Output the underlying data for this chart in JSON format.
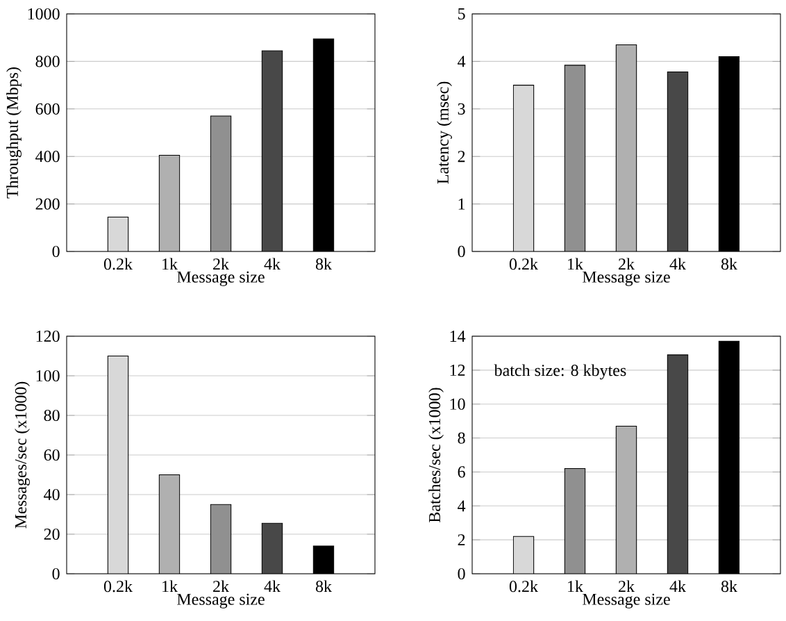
{
  "chart_data": [
    {
      "type": "bar",
      "xlabel": "Message size",
      "ylabel": "Throughput (Mbps)",
      "categories": [
        "0.2k",
        "1k",
        "2k",
        "4k",
        "8k"
      ],
      "values": [
        145,
        405,
        570,
        845,
        895
      ],
      "colors": [
        "#d8d8d8",
        "#b0b0b0",
        "#909090",
        "#484848",
        "#000000"
      ],
      "ylim": [
        0,
        1000
      ],
      "yticks": [
        0,
        200,
        400,
        600,
        800,
        1000
      ],
      "grid": "y"
    },
    {
      "type": "bar",
      "xlabel": "Message size",
      "ylabel": "Latency (msec)",
      "categories": [
        "0.2k",
        "1k",
        "2k",
        "4k",
        "8k"
      ],
      "values": [
        3.5,
        3.92,
        4.35,
        3.78,
        4.1
      ],
      "colors": [
        "#d8d8d8",
        "#909090",
        "#b0b0b0",
        "#484848",
        "#000000"
      ],
      "ylim": [
        0,
        5
      ],
      "yticks": [
        0,
        1,
        2,
        3,
        4,
        5
      ],
      "grid": "y"
    },
    {
      "type": "bar",
      "xlabel": "Message size",
      "ylabel": "Messages/sec (x1000)",
      "categories": [
        "0.2k",
        "1k",
        "2k",
        "4k",
        "8k"
      ],
      "values": [
        110,
        50,
        35,
        25.5,
        14
      ],
      "colors": [
        "#d8d8d8",
        "#b0b0b0",
        "#909090",
        "#484848",
        "#000000"
      ],
      "ylim": [
        0,
        120
      ],
      "yticks": [
        0,
        20,
        40,
        60,
        80,
        100,
        120
      ],
      "grid": "y"
    },
    {
      "type": "bar",
      "xlabel": "Message size",
      "ylabel": "Batches/sec (x1000)",
      "categories": [
        "0.2k",
        "1k",
        "2k",
        "4k",
        "8k"
      ],
      "values": [
        2.2,
        6.2,
        8.7,
        12.9,
        13.7
      ],
      "colors": [
        "#d8d8d8",
        "#909090",
        "#b0b0b0",
        "#484848",
        "#000000"
      ],
      "ylim": [
        0,
        14
      ],
      "yticks": [
        0,
        2,
        4,
        6,
        8,
        10,
        12,
        14
      ],
      "grid": "y",
      "annotations": [
        "batch size: 8 kbytes"
      ]
    }
  ]
}
